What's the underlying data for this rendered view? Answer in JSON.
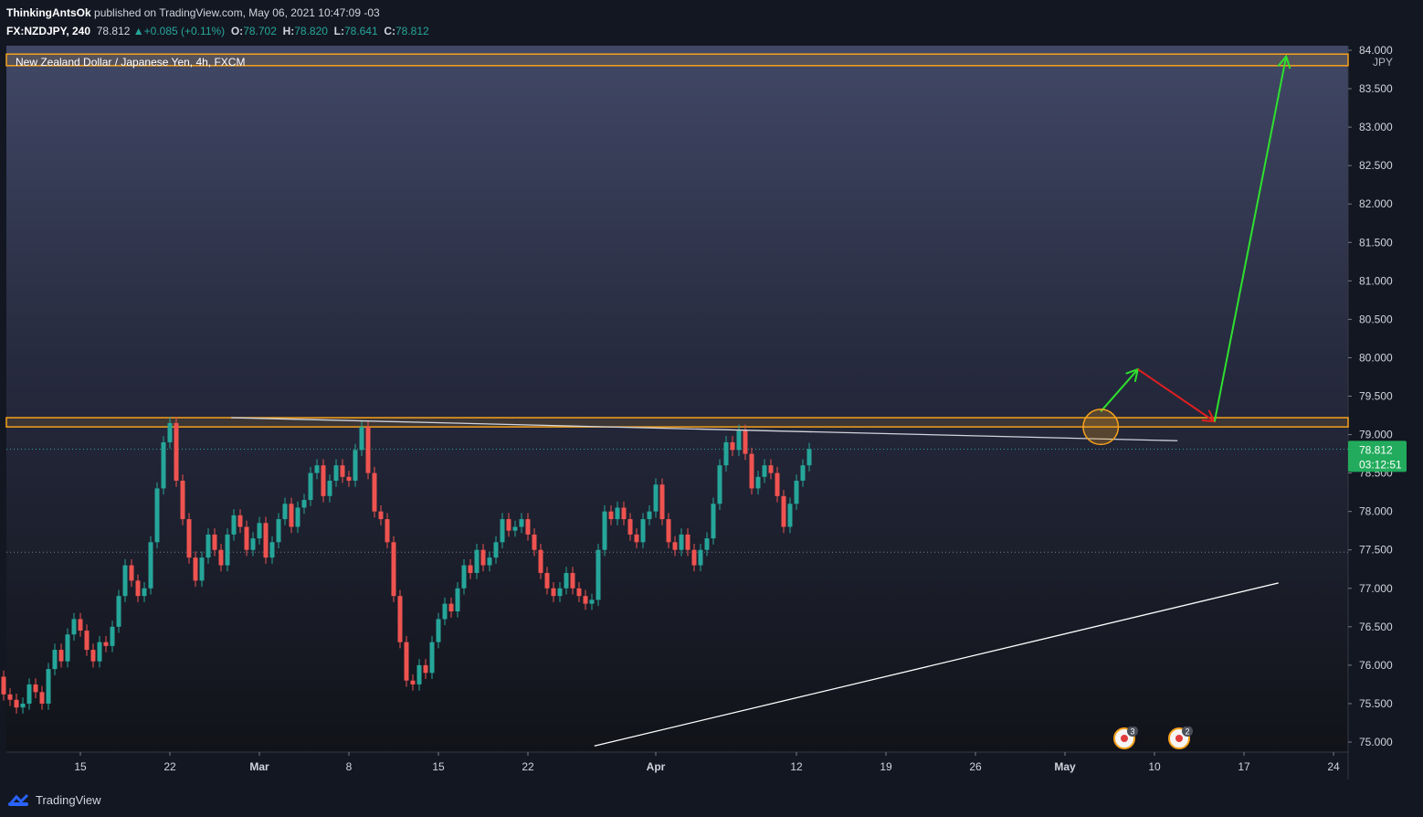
{
  "header": {
    "author": "ThinkingAntsOk",
    "published_text": "published on TradingView.com, May 06, 2021 10:47:09 -03",
    "symbol": "FX:NZDJPY, 240",
    "last": "78.812",
    "change": "+0.085 (+0.11%)",
    "o_label": "O:",
    "o_value": "78.702",
    "h_label": "H:",
    "h_value": "78.820",
    "l_label": "L:",
    "l_value": "78.641",
    "c_label": "C:",
    "c_value": "78.812"
  },
  "footer": {
    "brand": "TradingView"
  },
  "events": [
    {
      "count": "3"
    },
    {
      "count": "2"
    }
  ],
  "colors": {
    "background": "#131722",
    "up_candle": "#26a69a",
    "down_candle": "#ef5350",
    "zone_border": "#f7a21b",
    "arrow_green": "#2ee02e",
    "arrow_red": "#e01f1f",
    "price_tag": "#22ab5c"
  },
  "chart_data": {
    "type": "candlestick",
    "title": "New Zealand Dollar / Japanese Yen, 4h, FXCM",
    "currency": "JPY",
    "ylim": [
      74.9,
      84.05
    ],
    "y_ticks": [
      "84.000",
      "83.500",
      "83.000",
      "82.500",
      "82.000",
      "81.500",
      "81.000",
      "80.500",
      "80.000",
      "79.500",
      "79.000",
      "78.500",
      "78.000",
      "77.500",
      "77.000",
      "76.500",
      "76.000",
      "75.500",
      "75.000"
    ],
    "x_labels": [
      "15",
      "22",
      "Mar",
      "8",
      "15",
      "22",
      "Apr",
      "12",
      "19",
      "26",
      "May",
      "10",
      "17",
      "24"
    ],
    "x_label_days": [
      14,
      21,
      28,
      35,
      42,
      49,
      59,
      70,
      77,
      84,
      91,
      98,
      105,
      112
    ],
    "last_price": "78.812",
    "countdown": "03:12:51",
    "resistance_zones": [
      {
        "low": 79.1,
        "high": 79.22
      },
      {
        "low": 83.8,
        "high": 83.95
      }
    ],
    "dotted_levels": [
      78.81,
      77.47
    ],
    "trendlines": [
      {
        "from": [
          25.8,
          79.22
        ],
        "to": [
          99.8,
          78.92
        ],
        "color": "#d1d4dc"
      },
      {
        "from": [
          54.2,
          74.95
        ],
        "to": [
          107.7,
          77.07
        ],
        "color": "#ffffff"
      }
    ],
    "arrows": [
      {
        "from": [
          93.8,
          79.3
        ],
        "to": [
          96.7,
          79.85
        ],
        "color": "green"
      },
      {
        "from": [
          96.7,
          79.85
        ],
        "to": [
          102.7,
          79.17
        ],
        "color": "red"
      },
      {
        "from": [
          102.7,
          79.17
        ],
        "to": [
          108.3,
          83.92
        ],
        "color": "green"
      }
    ],
    "highlight_circle": {
      "center": [
        93.8,
        79.1
      ],
      "radius_days": 0.55
    },
    "candle_closes": [
      {
        "day": 7.5,
        "close": 75.85
      },
      {
        "day": 8.0,
        "close": 75.62
      },
      {
        "day": 8.5,
        "close": 75.55
      },
      {
        "day": 9.0,
        "close": 75.45
      },
      {
        "day": 9.5,
        "close": 75.5
      },
      {
        "day": 10.0,
        "close": 75.75
      },
      {
        "day": 10.5,
        "close": 75.65
      },
      {
        "day": 11.0,
        "close": 75.5
      },
      {
        "day": 11.5,
        "close": 75.95
      },
      {
        "day": 12.0,
        "close": 76.2
      },
      {
        "day": 12.5,
        "close": 76.05
      },
      {
        "day": 13.0,
        "close": 76.4
      },
      {
        "day": 13.5,
        "close": 76.6
      },
      {
        "day": 14.0,
        "close": 76.45
      },
      {
        "day": 14.5,
        "close": 76.2
      },
      {
        "day": 15.0,
        "close": 76.05
      },
      {
        "day": 15.5,
        "close": 76.3
      },
      {
        "day": 16.0,
        "close": 76.25
      },
      {
        "day": 16.5,
        "close": 76.5
      },
      {
        "day": 17.0,
        "close": 76.9
      },
      {
        "day": 17.5,
        "close": 77.3
      },
      {
        "day": 18.0,
        "close": 77.1
      },
      {
        "day": 18.5,
        "close": 76.9
      },
      {
        "day": 19.0,
        "close": 77.0
      },
      {
        "day": 19.5,
        "close": 77.6
      },
      {
        "day": 20.0,
        "close": 78.3
      },
      {
        "day": 20.5,
        "close": 78.9
      },
      {
        "day": 21.0,
        "close": 79.15
      },
      {
        "day": 21.5,
        "close": 78.4
      },
      {
        "day": 22.0,
        "close": 77.9
      },
      {
        "day": 22.5,
        "close": 77.4
      },
      {
        "day": 23.0,
        "close": 77.1
      },
      {
        "day": 23.5,
        "close": 77.4
      },
      {
        "day": 24.0,
        "close": 77.7
      },
      {
        "day": 24.5,
        "close": 77.5
      },
      {
        "day": 25.0,
        "close": 77.3
      },
      {
        "day": 25.5,
        "close": 77.7
      },
      {
        "day": 26.0,
        "close": 77.95
      },
      {
        "day": 26.5,
        "close": 77.8
      },
      {
        "day": 27.0,
        "close": 77.5
      },
      {
        "day": 27.5,
        "close": 77.65
      },
      {
        "day": 28.0,
        "close": 77.85
      },
      {
        "day": 28.5,
        "close": 77.4
      },
      {
        "day": 29.0,
        "close": 77.6
      },
      {
        "day": 29.5,
        "close": 77.9
      },
      {
        "day": 30.0,
        "close": 78.1
      },
      {
        "day": 30.5,
        "close": 77.8
      },
      {
        "day": 31.0,
        "close": 78.05
      },
      {
        "day": 31.5,
        "close": 78.15
      },
      {
        "day": 32.0,
        "close": 78.5
      },
      {
        "day": 32.5,
        "close": 78.6
      },
      {
        "day": 33.0,
        "close": 78.2
      },
      {
        "day": 33.5,
        "close": 78.4
      },
      {
        "day": 34.0,
        "close": 78.6
      },
      {
        "day": 34.5,
        "close": 78.45
      },
      {
        "day": 35.0,
        "close": 78.4
      },
      {
        "day": 35.5,
        "close": 78.8
      },
      {
        "day": 36.0,
        "close": 79.1
      },
      {
        "day": 36.5,
        "close": 78.5
      },
      {
        "day": 37.0,
        "close": 78.0
      },
      {
        "day": 37.5,
        "close": 77.9
      },
      {
        "day": 38.0,
        "close": 77.6
      },
      {
        "day": 38.5,
        "close": 76.9
      },
      {
        "day": 39.0,
        "close": 76.3
      },
      {
        "day": 39.5,
        "close": 75.8
      },
      {
        "day": 40.0,
        "close": 75.75
      },
      {
        "day": 40.5,
        "close": 76.0
      },
      {
        "day": 41.0,
        "close": 75.9
      },
      {
        "day": 41.5,
        "close": 76.3
      },
      {
        "day": 42.0,
        "close": 76.6
      },
      {
        "day": 42.5,
        "close": 76.8
      },
      {
        "day": 43.0,
        "close": 76.7
      },
      {
        "day": 43.5,
        "close": 77.0
      },
      {
        "day": 44.0,
        "close": 77.3
      },
      {
        "day": 44.5,
        "close": 77.2
      },
      {
        "day": 45.0,
        "close": 77.5
      },
      {
        "day": 45.5,
        "close": 77.3
      },
      {
        "day": 46.0,
        "close": 77.4
      },
      {
        "day": 46.5,
        "close": 77.6
      },
      {
        "day": 47.0,
        "close": 77.9
      },
      {
        "day": 47.5,
        "close": 77.75
      },
      {
        "day": 48.0,
        "close": 77.8
      },
      {
        "day": 48.5,
        "close": 77.9
      },
      {
        "day": 49.0,
        "close": 77.7
      },
      {
        "day": 49.5,
        "close": 77.5
      },
      {
        "day": 50.0,
        "close": 77.2
      },
      {
        "day": 50.5,
        "close": 77.0
      },
      {
        "day": 51.0,
        "close": 76.9
      },
      {
        "day": 51.5,
        "close": 77.0
      },
      {
        "day": 52.0,
        "close": 77.2
      },
      {
        "day": 52.5,
        "close": 77.0
      },
      {
        "day": 53.0,
        "close": 76.9
      },
      {
        "day": 53.5,
        "close": 76.8
      },
      {
        "day": 54.0,
        "close": 76.85
      },
      {
        "day": 54.5,
        "close": 77.5
      },
      {
        "day": 55.0,
        "close": 78.0
      },
      {
        "day": 55.5,
        "close": 77.9
      },
      {
        "day": 56.0,
        "close": 78.05
      },
      {
        "day": 56.5,
        "close": 77.9
      },
      {
        "day": 57.0,
        "close": 77.7
      },
      {
        "day": 57.5,
        "close": 77.6
      },
      {
        "day": 58.0,
        "close": 77.9
      },
      {
        "day": 58.5,
        "close": 78.0
      },
      {
        "day": 59.0,
        "close": 78.35
      },
      {
        "day": 59.5,
        "close": 77.9
      },
      {
        "day": 60.0,
        "close": 77.6
      },
      {
        "day": 60.5,
        "close": 77.5
      },
      {
        "day": 61.0,
        "close": 77.7
      },
      {
        "day": 61.5,
        "close": 77.5
      },
      {
        "day": 62.0,
        "close": 77.3
      },
      {
        "day": 62.5,
        "close": 77.5
      },
      {
        "day": 63.0,
        "close": 77.65
      },
      {
        "day": 63.5,
        "close": 78.1
      },
      {
        "day": 64.0,
        "close": 78.6
      },
      {
        "day": 64.5,
        "close": 78.9
      },
      {
        "day": 65.0,
        "close": 78.8
      },
      {
        "day": 65.5,
        "close": 79.05
      },
      {
        "day": 66.0,
        "close": 78.75
      },
      {
        "day": 66.5,
        "close": 78.3
      },
      {
        "day": 67.0,
        "close": 78.45
      },
      {
        "day": 67.5,
        "close": 78.6
      },
      {
        "day": 68.0,
        "close": 78.5
      },
      {
        "day": 68.5,
        "close": 78.2
      },
      {
        "day": 69.0,
        "close": 77.8
      },
      {
        "day": 69.5,
        "close": 78.1
      },
      {
        "day": 70.0,
        "close": 78.4
      },
      {
        "day": 70.5,
        "close": 78.6
      },
      {
        "day": 71.0,
        "close": 78.812
      }
    ]
  }
}
